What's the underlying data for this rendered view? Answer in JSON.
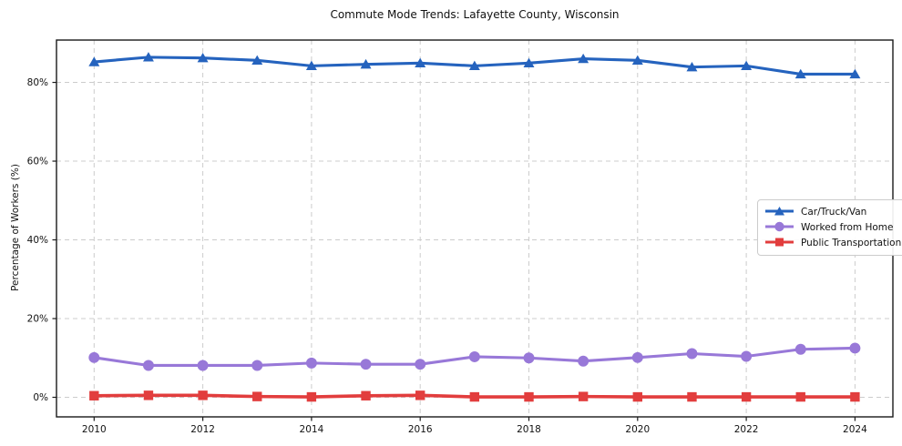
{
  "title": "Commute Mode Trends: Lafayette County, Wisconsin",
  "ylabel": "Percentage of Workers (%)",
  "colors": {
    "car": "#2563BE",
    "home": "#9878D8",
    "transit": "#E23D3D",
    "grid": "#CCCCCC",
    "spine": "#1A1A1A",
    "text": "#111111"
  },
  "chart_data": {
    "type": "line",
    "x": [
      2010,
      2011,
      2012,
      2013,
      2014,
      2015,
      2016,
      2017,
      2018,
      2019,
      2020,
      2021,
      2022,
      2023,
      2024
    ],
    "series": [
      {
        "name": "Car/Truck/Van",
        "marker": "triangle",
        "color": "#2563BE",
        "values": [
          85.2,
          86.4,
          86.2,
          85.6,
          84.2,
          84.6,
          84.9,
          84.2,
          84.9,
          86.0,
          85.6,
          83.9,
          84.2,
          82.1,
          82.1
        ]
      },
      {
        "name": "Worked from Home",
        "marker": "circle",
        "color": "#9878D8",
        "values": [
          10.1,
          8.1,
          8.1,
          8.1,
          8.7,
          8.4,
          8.4,
          10.3,
          10.0,
          9.2,
          10.1,
          11.1,
          10.4,
          12.2,
          12.5
        ]
      },
      {
        "name": "Public Transportation",
        "marker": "square",
        "color": "#E23D3D",
        "values": [
          0.4,
          0.5,
          0.5,
          0.2,
          0.1,
          0.4,
          0.5,
          0.1,
          0.1,
          0.2,
          0.1,
          0.1,
          0.1,
          0.1,
          0.1
        ]
      }
    ],
    "x_ticks": [
      "2010",
      "2012",
      "2014",
      "2016",
      "2018",
      "2020",
      "2022",
      "2024"
    ],
    "x_tick_values": [
      2010,
      2012,
      2014,
      2016,
      2018,
      2020,
      2022,
      2024
    ],
    "y_ticks": [
      "0%",
      "20%",
      "40%",
      "60%",
      "80%"
    ],
    "y_tick_values": [
      0,
      20,
      40,
      60,
      80
    ],
    "xlim": [
      2009.31,
      2024.7
    ],
    "ylim": [
      -5,
      90.8
    ],
    "grid": "dashed, both axes",
    "legend_position": "center right"
  }
}
